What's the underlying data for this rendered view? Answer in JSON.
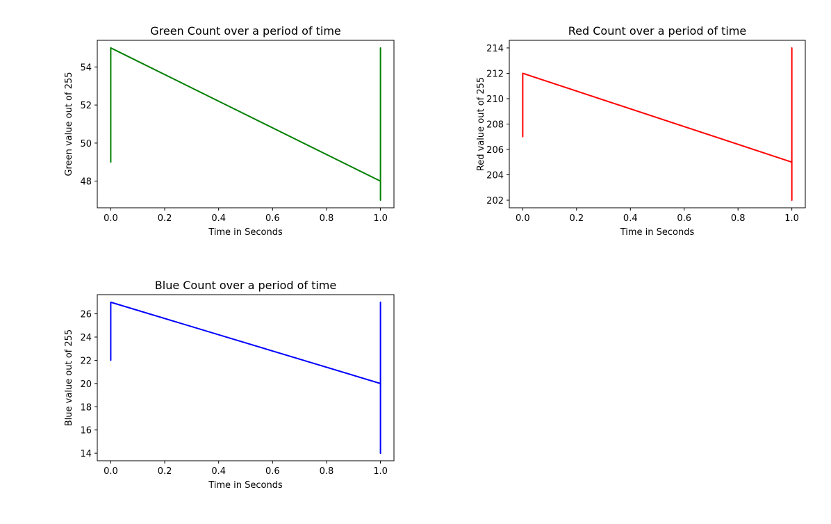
{
  "chart_data": [
    {
      "type": "line",
      "title": "Green Count over a period of time",
      "xlabel": "Time in Seconds",
      "ylabel": "Green value out of 255",
      "color": "#008000",
      "xlim": [
        -0.05,
        1.05
      ],
      "ylim": [
        46.6,
        55.4
      ],
      "xticks": [
        0.0,
        0.2,
        0.4,
        0.6,
        0.8,
        1.0
      ],
      "xtick_labels": [
        "0.0",
        "0.2",
        "0.4",
        "0.6",
        "0.8",
        "1.0"
      ],
      "yticks": [
        48,
        50,
        52,
        54
      ],
      "ytick_labels": [
        "48",
        "50",
        "52",
        "54"
      ],
      "grid": false,
      "series": [
        {
          "x": [
            0.0,
            0.0,
            0.0,
            0.0,
            0.0,
            1.0,
            1.0,
            1.0,
            1.0,
            1.0,
            1.0
          ],
          "y": [
            52,
            49,
            50,
            52,
            55,
            48,
            47,
            55,
            50,
            53,
            48
          ]
        }
      ]
    },
    {
      "type": "line",
      "title": "Red Count over a period of time",
      "xlabel": "Time in Seconds",
      "ylabel": "Red value out of 255",
      "color": "#ff0000",
      "xlim": [
        -0.05,
        1.05
      ],
      "ylim": [
        201.4,
        214.6
      ],
      "xticks": [
        0.0,
        0.2,
        0.4,
        0.6,
        0.8,
        1.0
      ],
      "xtick_labels": [
        "0.0",
        "0.2",
        "0.4",
        "0.6",
        "0.8",
        "1.0"
      ],
      "yticks": [
        202,
        204,
        206,
        208,
        210,
        212,
        214
      ],
      "ytick_labels": [
        "202",
        "204",
        "206",
        "208",
        "210",
        "212",
        "214"
      ],
      "grid": false,
      "series": [
        {
          "x": [
            0.0,
            0.0,
            0.0,
            0.0,
            1.0,
            1.0,
            1.0,
            1.0,
            1.0,
            1.0
          ],
          "y": [
            209,
            207,
            209,
            212,
            205,
            212,
            202,
            214,
            205,
            203
          ]
        }
      ]
    },
    {
      "type": "line",
      "title": "Blue Count over a period of time",
      "xlabel": "Time in Seconds",
      "ylabel": "Blue value out of 255",
      "color": "#0000ff",
      "xlim": [
        -0.05,
        1.05
      ],
      "ylim": [
        13.35,
        27.65
      ],
      "xticks": [
        0.0,
        0.2,
        0.4,
        0.6,
        0.8,
        1.0
      ],
      "xtick_labels": [
        "0.0",
        "0.2",
        "0.4",
        "0.6",
        "0.8",
        "1.0"
      ],
      "yticks": [
        14,
        16,
        18,
        20,
        22,
        24,
        26
      ],
      "ytick_labels": [
        "14",
        "16",
        "18",
        "20",
        "22",
        "24",
        "26"
      ],
      "grid": false,
      "series": [
        {
          "x": [
            0.0,
            0.0,
            0.0,
            0.0,
            1.0,
            1.0,
            1.0,
            1.0,
            1.0,
            1.0
          ],
          "y": [
            24,
            22,
            24,
            27,
            20,
            27,
            14,
            27,
            18,
            20
          ]
        }
      ]
    }
  ]
}
